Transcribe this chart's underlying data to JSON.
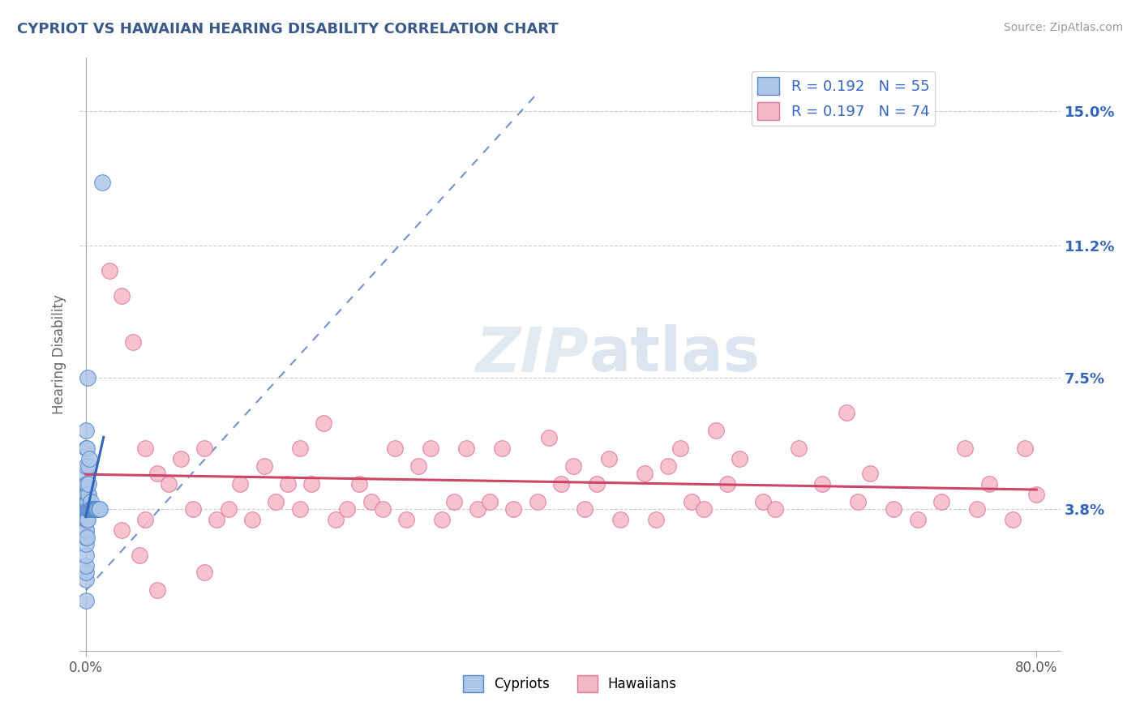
{
  "title": "CYPRIOT VS HAWAIIAN HEARING DISABILITY CORRELATION CHART",
  "source_text": "Source: ZipAtlas.com",
  "ylabel": "Hearing Disability",
  "yticks": [
    3.8,
    7.5,
    11.2,
    15.0
  ],
  "ytick_labels": [
    "3.8%",
    "7.5%",
    "11.2%",
    "15.0%"
  ],
  "xtick_labels": [
    "0.0%",
    "80.0%"
  ],
  "grid_color": "#cccccc",
  "background_color": "#ffffff",
  "title_color": "#3a5a8a",
  "cypriot_color": "#aec6e8",
  "cypriot_edge_color": "#5588cc",
  "hawaiian_color": "#f5b8c8",
  "hawaiian_edge_color": "#dd7799",
  "cypriot_R": 0.192,
  "cypriot_N": 55,
  "hawaiian_R": 0.197,
  "hawaiian_N": 74,
  "cypriot_trend_color": "#3366bb",
  "hawaiian_trend_color": "#cc4466",
  "legend_R_color": "#3366cc",
  "watermark_color": "#ccddf0",
  "cypriot_x": [
    0.05,
    0.05,
    0.05,
    0.05,
    0.05,
    0.05,
    0.05,
    0.05,
    0.05,
    0.05,
    0.05,
    0.05,
    0.05,
    0.05,
    0.05,
    0.05,
    0.05,
    0.05,
    0.05,
    0.05,
    0.1,
    0.1,
    0.1,
    0.1,
    0.1,
    0.1,
    0.1,
    0.15,
    0.15,
    0.15,
    0.15,
    0.2,
    0.2,
    0.2,
    0.25,
    0.25,
    0.3,
    0.3,
    0.35,
    0.4,
    0.45,
    0.5,
    0.55,
    0.6,
    0.65,
    0.7,
    0.75,
    0.8,
    0.85,
    0.9,
    0.95,
    1.0,
    1.1,
    1.2,
    1.4
  ],
  "cypriot_y": [
    1.2,
    1.8,
    2.0,
    2.2,
    2.5,
    2.8,
    3.0,
    3.2,
    3.5,
    3.8,
    4.0,
    4.2,
    4.5,
    4.8,
    5.0,
    5.5,
    6.0,
    3.8,
    3.5,
    3.2,
    3.8,
    4.0,
    4.2,
    3.5,
    3.0,
    4.5,
    5.5,
    3.8,
    4.0,
    3.5,
    7.5,
    3.8,
    4.2,
    5.0,
    3.8,
    4.5,
    3.8,
    5.2,
    3.8,
    4.0,
    3.8,
    3.8,
    3.8,
    3.8,
    3.8,
    3.8,
    3.8,
    3.8,
    3.8,
    3.8,
    3.8,
    3.8,
    3.8,
    3.8,
    13.0
  ],
  "hawaiian_x": [
    2.0,
    3.0,
    4.0,
    5.0,
    5.0,
    6.0,
    7.0,
    8.0,
    9.0,
    10.0,
    11.0,
    12.0,
    13.0,
    14.0,
    15.0,
    16.0,
    17.0,
    18.0,
    18.0,
    19.0,
    20.0,
    21.0,
    22.0,
    23.0,
    24.0,
    25.0,
    26.0,
    27.0,
    28.0,
    29.0,
    30.0,
    31.0,
    32.0,
    33.0,
    34.0,
    35.0,
    36.0,
    38.0,
    39.0,
    40.0,
    41.0,
    42.0,
    43.0,
    44.0,
    45.0,
    47.0,
    48.0,
    49.0,
    50.0,
    51.0,
    52.0,
    53.0,
    54.0,
    55.0,
    57.0,
    58.0,
    60.0,
    62.0,
    64.0,
    65.0,
    66.0,
    68.0,
    70.0,
    72.0,
    74.0,
    75.0,
    76.0,
    78.0,
    79.0,
    80.0,
    3.0,
    4.5,
    6.0,
    10.0
  ],
  "hawaiian_y": [
    10.5,
    9.8,
    8.5,
    5.5,
    3.5,
    4.8,
    4.5,
    5.2,
    3.8,
    5.5,
    3.5,
    3.8,
    4.5,
    3.5,
    5.0,
    4.0,
    4.5,
    3.8,
    5.5,
    4.5,
    6.2,
    3.5,
    3.8,
    4.5,
    4.0,
    3.8,
    5.5,
    3.5,
    5.0,
    5.5,
    3.5,
    4.0,
    5.5,
    3.8,
    4.0,
    5.5,
    3.8,
    4.0,
    5.8,
    4.5,
    5.0,
    3.8,
    4.5,
    5.2,
    3.5,
    4.8,
    3.5,
    5.0,
    5.5,
    4.0,
    3.8,
    6.0,
    4.5,
    5.2,
    4.0,
    3.8,
    5.5,
    4.5,
    6.5,
    4.0,
    4.8,
    3.8,
    3.5,
    4.0,
    5.5,
    3.8,
    4.5,
    3.5,
    5.5,
    4.2,
    3.2,
    2.5,
    1.5,
    2.0
  ]
}
